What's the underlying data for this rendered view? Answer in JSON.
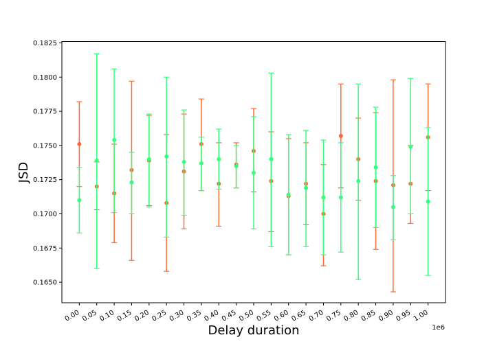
{
  "chart_data": {
    "type": "scatter",
    "xlabel": "Delay duration",
    "ylabel": "JSD",
    "x_offset_label": "1e6",
    "x_tick_labels": [
      "0.00",
      "0.05",
      "0.10",
      "0.15",
      "0.20",
      "0.25",
      "0.30",
      "0.35",
      "0.40",
      "0.45",
      "0.50",
      "0.55",
      "0.60",
      "0.65",
      "0.70",
      "0.75",
      "0.80",
      "0.85",
      "0.90",
      "0.95",
      "1.00"
    ],
    "y_tick_labels": [
      "0.1650",
      "0.1675",
      "0.1700",
      "0.1725",
      "0.1750",
      "0.1775",
      "0.1800",
      "0.1825"
    ],
    "ylim": [
      0.1635,
      0.1826
    ],
    "grid": false,
    "x": [
      0.0,
      0.05,
      0.1,
      0.15,
      0.2,
      0.25,
      0.3,
      0.35,
      0.4,
      0.45,
      0.5,
      0.55,
      0.6,
      0.65,
      0.7,
      0.75,
      0.8,
      0.85,
      0.9,
      0.95,
      1.0
    ],
    "series": [
      {
        "color": "#ff6a33",
        "values": [
          0.1751,
          0.172,
          0.1715,
          0.1732,
          0.1739,
          0.1708,
          0.1731,
          0.1751,
          0.1722,
          0.1736,
          0.1746,
          0.1724,
          0.1713,
          0.1722,
          0.17,
          0.1757,
          0.174,
          0.1724,
          0.1721,
          0.1722,
          0.1756
        ],
        "err_low": [
          0.172,
          0.1703,
          0.1679,
          0.1666,
          0.1706,
          0.1658,
          0.1689,
          0.1717,
          0.1691,
          0.1719,
          0.1716,
          0.1687,
          0.167,
          0.1692,
          0.1662,
          0.1719,
          0.171,
          0.1674,
          0.1643,
          0.1693,
          0.1717
        ],
        "err_high": [
          0.1782,
          0.1738,
          0.1751,
          0.1797,
          0.1772,
          0.1758,
          0.1773,
          0.1784,
          0.1752,
          0.1752,
          0.1777,
          0.176,
          0.1755,
          0.1752,
          0.1736,
          0.1795,
          0.177,
          0.1774,
          0.1798,
          0.175,
          0.1795
        ]
      },
      {
        "color": "#33ff7a",
        "values": [
          0.171,
          0.1739,
          0.1754,
          0.1723,
          0.174,
          0.1742,
          0.1738,
          0.1737,
          0.174,
          0.1735,
          0.173,
          0.174,
          0.1714,
          0.1719,
          0.1712,
          0.1712,
          0.1724,
          0.1734,
          0.1705,
          0.1749,
          0.1709
        ],
        "err_low": [
          0.1686,
          0.166,
          0.1701,
          0.17,
          0.1705,
          0.1683,
          0.1699,
          0.1717,
          0.1718,
          0.1719,
          0.1689,
          0.1676,
          0.167,
          0.1676,
          0.167,
          0.1672,
          0.1652,
          0.169,
          0.1681,
          0.17,
          0.1655
        ],
        "err_high": [
          0.1734,
          0.1817,
          0.1806,
          0.1745,
          0.1773,
          0.18,
          0.1776,
          0.1756,
          0.1762,
          0.175,
          0.1771,
          0.1803,
          0.1758,
          0.1761,
          0.1754,
          0.1752,
          0.1795,
          0.1778,
          0.1728,
          0.1799,
          0.1763
        ]
      }
    ]
  }
}
